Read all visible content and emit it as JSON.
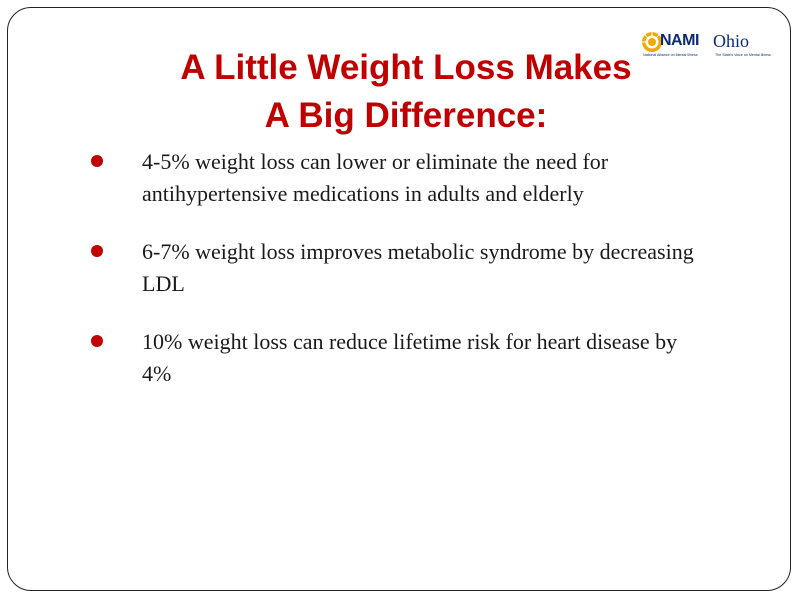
{
  "slide": {
    "title_line1": "A Little Weight Loss Makes",
    "title_line2": "A Big Difference:",
    "logo": {
      "name": "NAMI",
      "state": "Ohio",
      "tagline_left": "National Alliance on Mental Illness",
      "tagline_right": "The State's Voice on Mental Illness",
      "icon": "nami-sunburst-icon",
      "colors": {
        "text": "#0b2a7a",
        "mark": "#f2a900"
      }
    },
    "bullets": [
      {
        "text": "4-5% weight loss can lower or eliminate the need for antihypertensive medications in adults and elderly"
      },
      {
        "text": "6-7% weight loss improves metabolic syndrome by decreasing LDL"
      },
      {
        "text": "10% weight loss can reduce lifetime risk for heart disease by 4%"
      }
    ],
    "colors": {
      "title": "#c00000",
      "bullet": "#c00000",
      "body_text": "#1a1a1a"
    }
  }
}
